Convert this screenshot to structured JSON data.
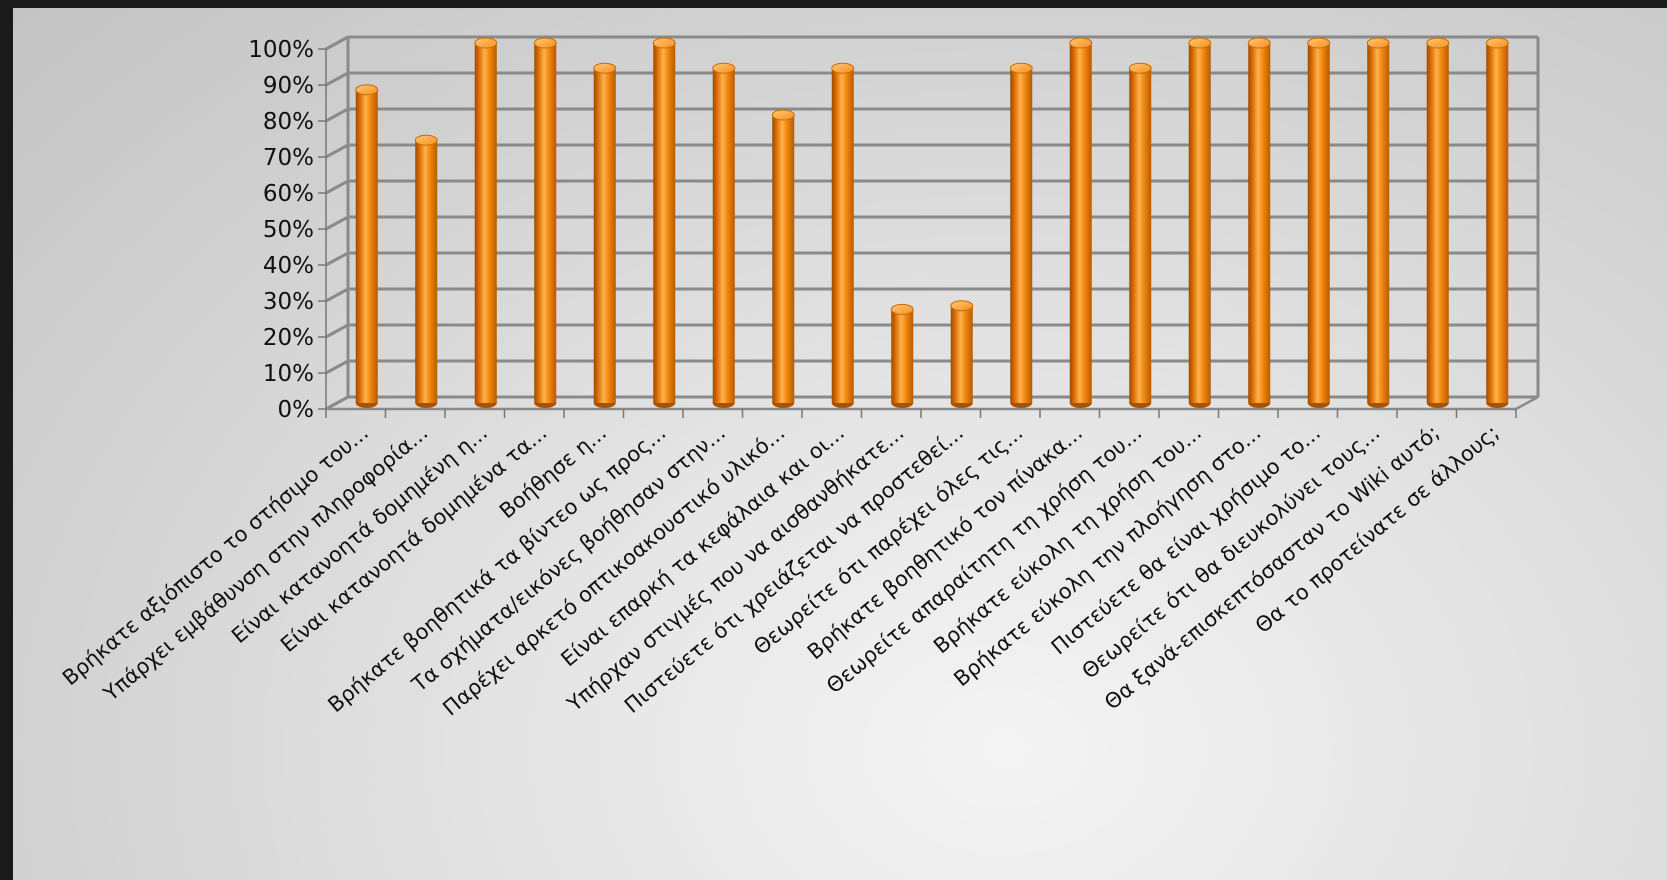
{
  "chart_data": {
    "type": "bar",
    "title": "",
    "xlabel": "",
    "ylabel": "",
    "ylim": [
      0,
      100
    ],
    "y_ticks": [
      "0%",
      "10%",
      "20%",
      "30%",
      "40%",
      "50%",
      "60%",
      "70%",
      "80%",
      "90%",
      "100%"
    ],
    "grid": true,
    "legend": "none",
    "bar_color": "#f07d00",
    "categories": [
      "Βρήκατε αξιόπιστο το στήσιμο του...",
      "Υπάρχει εμβάθυνση στην πληροφορία...",
      "Είναι κατανοητά δομημένη η...",
      "Είναι κατανοητά δομημένα τα...",
      "Βοήθησε η...",
      "Βρήκατε βοηθητικά τα βίντεο ως προς...",
      "Τα σχήματα/εικόνες βοήθησαν στην...",
      "Παρέχει αρκετό οπτικοακουστικό υλικό...",
      "Είναι επαρκή τα κεφάλαια και οι...",
      "Υπήρχαν στιγμές που να αισθανθήκατε...",
      "Πιστεύετε ότι χρειάζεται να προστεθεί...",
      "Θεωρείτε ότι παρέχει όλες τις...",
      "Βρήκατε βοηθητικό τον πίνακα...",
      "Θεωρείτε απαραίτητη τη χρήση του...",
      "Βρήκατε εύκολη τη χρήση του...",
      "Βρήκατε εύκολη την πλοήγηση στο...",
      "Πιστεύετε θα είναι χρήσιμο το...",
      "Θεωρείτε ότι θα διευκολύνει τους...",
      "Θα ξανά-επισκεπτόσασταν το Wiki αυτό;",
      "Θα το  προτείνατε σε άλλους;"
    ],
    "values": [
      87,
      73,
      100,
      100,
      93,
      100,
      93,
      80,
      93,
      26,
      27,
      93,
      100,
      93,
      100,
      100,
      100,
      100,
      100,
      100
    ]
  }
}
